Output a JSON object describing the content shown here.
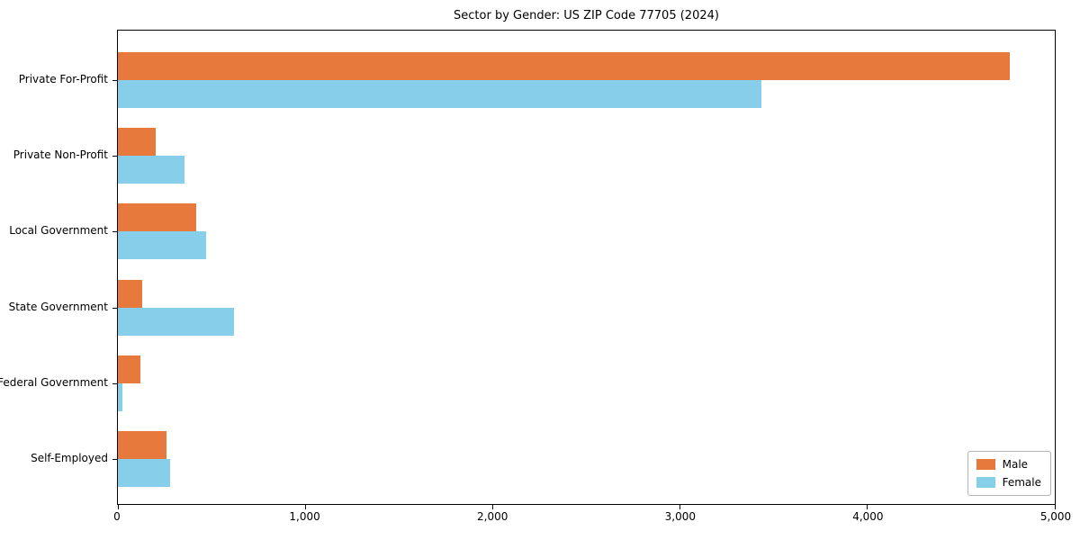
{
  "title": "Sector by Gender: US ZIP Code 77705 (2024)",
  "chart_data": {
    "type": "bar",
    "orientation": "horizontal",
    "title": "Sector by Gender: US ZIP Code 77705 (2024)",
    "categories": [
      "Private For-Profit",
      "Private Non-Profit",
      "Local Government",
      "State Government",
      "Federal Government",
      "Self-Employed"
    ],
    "series": [
      {
        "name": "Male",
        "color": "#e8793d",
        "values": [
          4760,
          200,
          420,
          130,
          120,
          260
        ]
      },
      {
        "name": "Female",
        "color": "#87ceeb",
        "values": [
          3435,
          355,
          470,
          620,
          25,
          280
        ]
      }
    ],
    "xlabel": "",
    "ylabel": "",
    "xlim": [
      0,
      5000
    ],
    "xticks": [
      0,
      1000,
      2000,
      3000,
      4000,
      5000
    ],
    "xtick_labels": [
      "0",
      "1,000",
      "2,000",
      "3,000",
      "4,000",
      "5,000"
    ],
    "grid": false,
    "legend_position": "lower right",
    "background_color": "#ffffff",
    "spine_color": "#000000"
  }
}
